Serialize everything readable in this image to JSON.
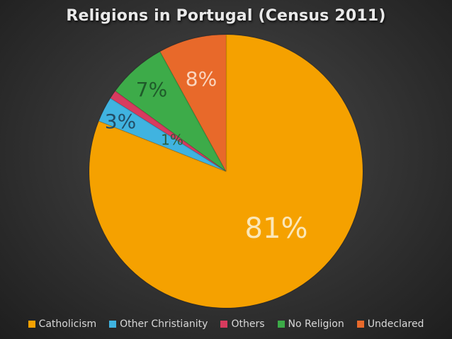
{
  "chart_data": {
    "type": "pie",
    "title": "Religions in Portugal (Census 2011)",
    "categories": [
      "Catholicism",
      "Other Christianity",
      "Others",
      "No Religion",
      "Undeclared"
    ],
    "values": [
      81,
      3,
      1,
      7,
      8
    ],
    "labels": [
      "81%",
      "3%",
      "1%",
      "7%",
      "8%"
    ],
    "colors": [
      "#f5a100",
      "#3fb3e0",
      "#d83b5e",
      "#3cab48",
      "#e8692b"
    ],
    "legend": "bottom"
  }
}
